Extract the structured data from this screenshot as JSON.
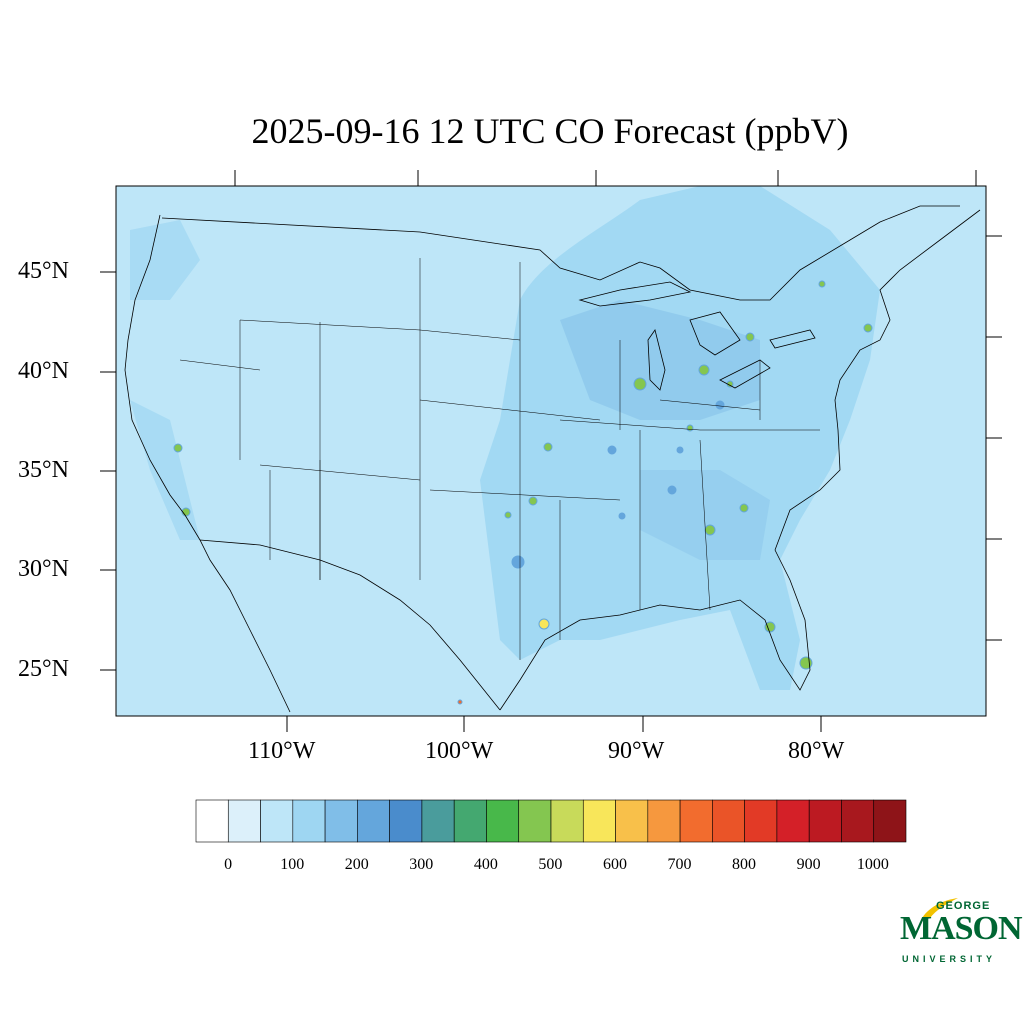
{
  "title": "2025-09-16 12 UTC CO Forecast (ppbV)",
  "lat_labels": [
    "45°N",
    "40°N",
    "35°N",
    "30°N",
    "25°N"
  ],
  "lon_labels": [
    "110°W",
    "100°W",
    "90°W",
    "80°W"
  ],
  "colorbar": {
    "labels": [
      "0",
      "100",
      "200",
      "300",
      "400",
      "500",
      "600",
      "700",
      "800",
      "900",
      "1000"
    ],
    "colors": [
      "#ffffff",
      "#dcf0fa",
      "#bee6f8",
      "#9ed6f2",
      "#80bee8",
      "#64a6dc",
      "#4a8ccc",
      "#4a9c9c",
      "#44a870",
      "#48b84a",
      "#84c650",
      "#c8da5a",
      "#f8e65a",
      "#f8c04a",
      "#f6983e",
      "#f26c2e",
      "#ea5428",
      "#e23a26",
      "#d42028",
      "#bc1a22",
      "#a8181e",
      "#8e1418"
    ]
  },
  "map": {
    "background_color": "#bee6f8",
    "hotspot_color": "#9ed6f2",
    "high_color": "#84c650"
  },
  "logo": {
    "line1": "GEORGE",
    "line2": "MASON",
    "line3": "UNIVERSITY"
  }
}
